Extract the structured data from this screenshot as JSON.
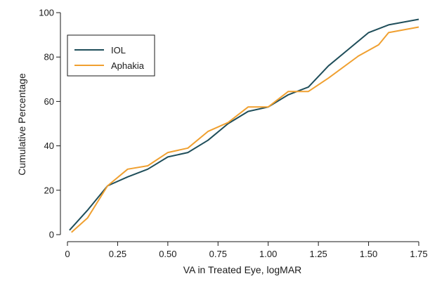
{
  "chart_data": {
    "type": "line",
    "xlabel": "VA in Treated Eye, logMAR",
    "ylabel": "Cumulative Percentage",
    "xlim": [
      0,
      1.75
    ],
    "ylim": [
      0,
      100
    ],
    "xticks": [
      "0",
      "0.25",
      "0.50",
      "0.75",
      "1.00",
      "1.25",
      "1.50",
      "1.75"
    ],
    "yticks": [
      "0",
      "20",
      "40",
      "60",
      "80",
      "100"
    ],
    "grid": false,
    "legend_position": "top-left",
    "series": [
      {
        "name": "IOL",
        "color": "#1f4e5a",
        "x": [
          0.01,
          0.1,
          0.2,
          0.3,
          0.4,
          0.5,
          0.6,
          0.7,
          0.8,
          0.9,
          1.0,
          1.1,
          1.2,
          1.3,
          1.4,
          1.5,
          1.6,
          1.75
        ],
        "y": [
          2,
          11,
          22,
          26,
          29.5,
          35,
          37,
          42.5,
          50,
          55.5,
          57.5,
          63,
          66.5,
          76,
          83.5,
          91,
          94.5,
          97
        ]
      },
      {
        "name": "Aphakia",
        "color": "#f0a030",
        "x": [
          0.02,
          0.1,
          0.2,
          0.3,
          0.4,
          0.5,
          0.6,
          0.7,
          0.8,
          0.9,
          1.0,
          1.1,
          1.2,
          1.3,
          1.45,
          1.55,
          1.6,
          1.75
        ],
        "y": [
          1,
          7.5,
          22,
          29.5,
          31,
          37,
          39,
          46.5,
          50.5,
          57.5,
          57.5,
          64.5,
          64.5,
          70.5,
          80.5,
          85.5,
          91,
          93.5
        ]
      }
    ]
  }
}
